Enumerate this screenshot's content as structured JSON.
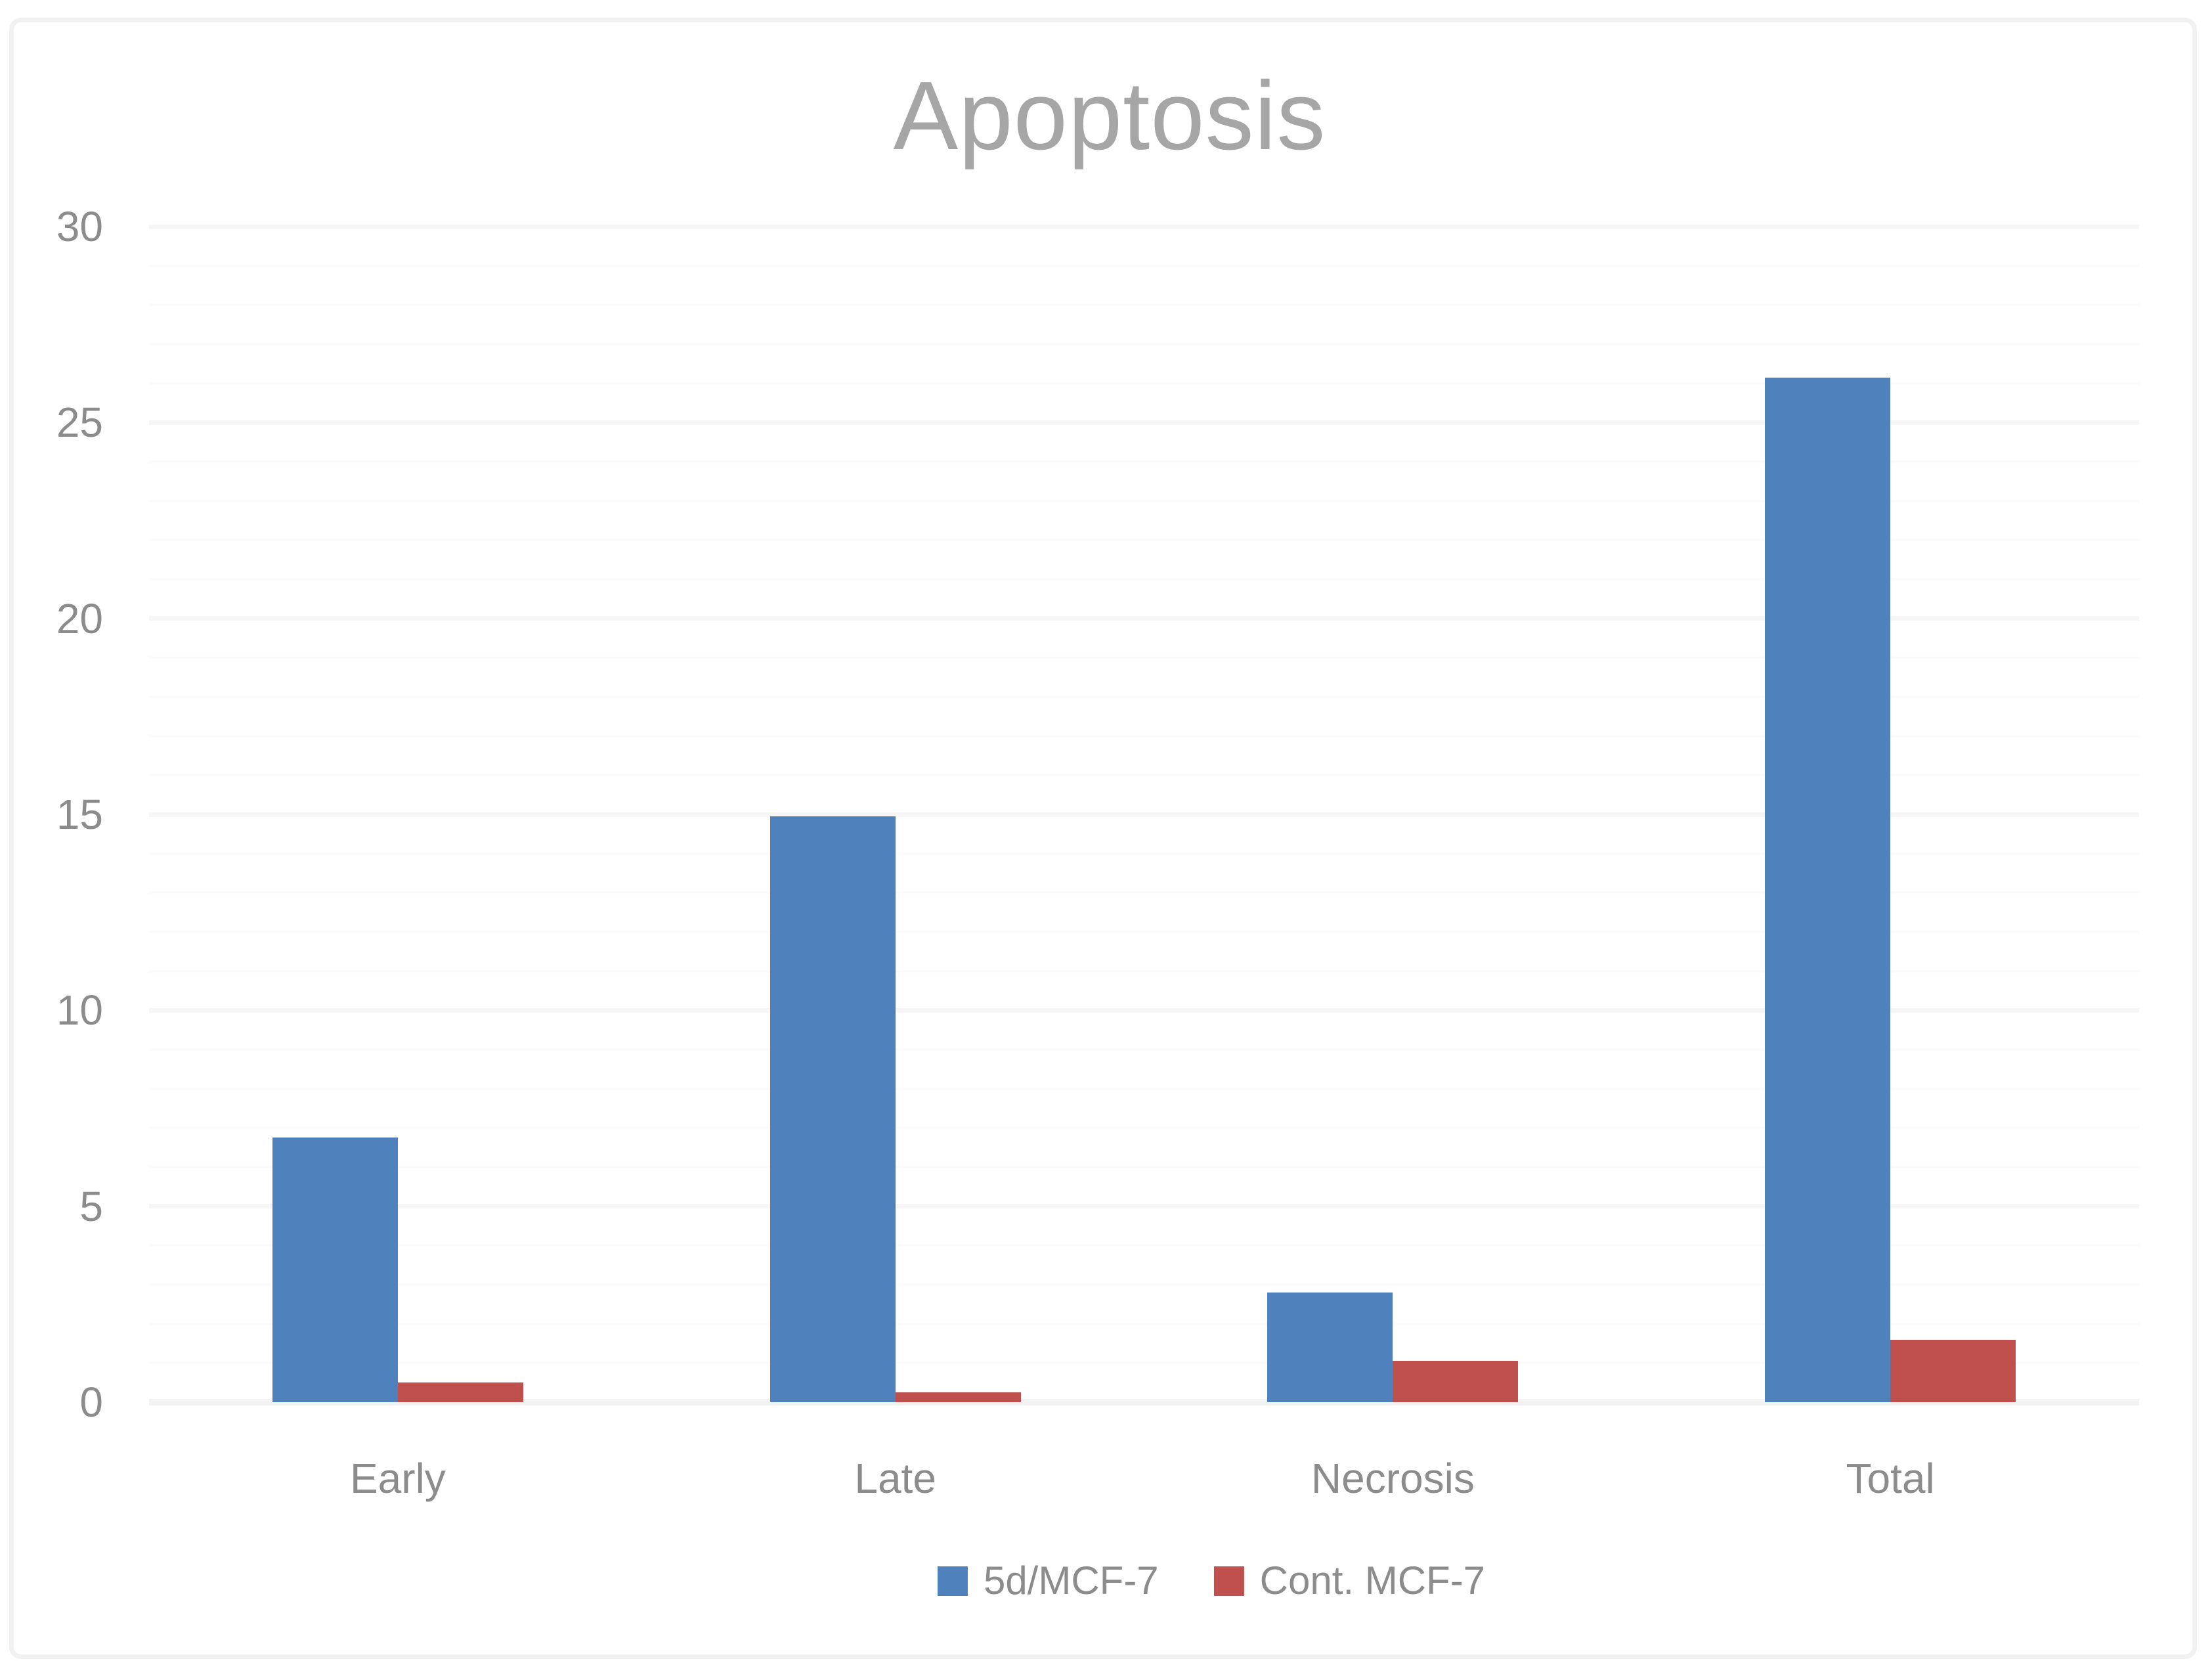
{
  "chart_data": {
    "type": "bar",
    "title": "Apoptosis",
    "categories": [
      "Early",
      "Late",
      "Necrosis",
      "Total"
    ],
    "series": [
      {
        "name": "5d/MCF-7",
        "color": "#4F81BD",
        "values": [
          6.75,
          14.95,
          2.8,
          26.15
        ]
      },
      {
        "name": "Cont. MCF-7",
        "color": "#C0504D",
        "values": [
          0.5,
          0.25,
          1.05,
          1.6
        ]
      }
    ],
    "xlabel": "",
    "ylabel": "",
    "ylim": [
      0,
      30
    ],
    "y_ticks": [
      0,
      5,
      10,
      15,
      20,
      25,
      30
    ],
    "y_minor_step": 1,
    "grid": true,
    "legend_position": "bottom",
    "title_color": "#A6A6A6",
    "axis_text_color": "#8C8C8C",
    "gridline_major_color": "#F6F6F6",
    "gridline_minor_color": "#FBFBFB",
    "axis_line_color": "#F3F3F3"
  }
}
